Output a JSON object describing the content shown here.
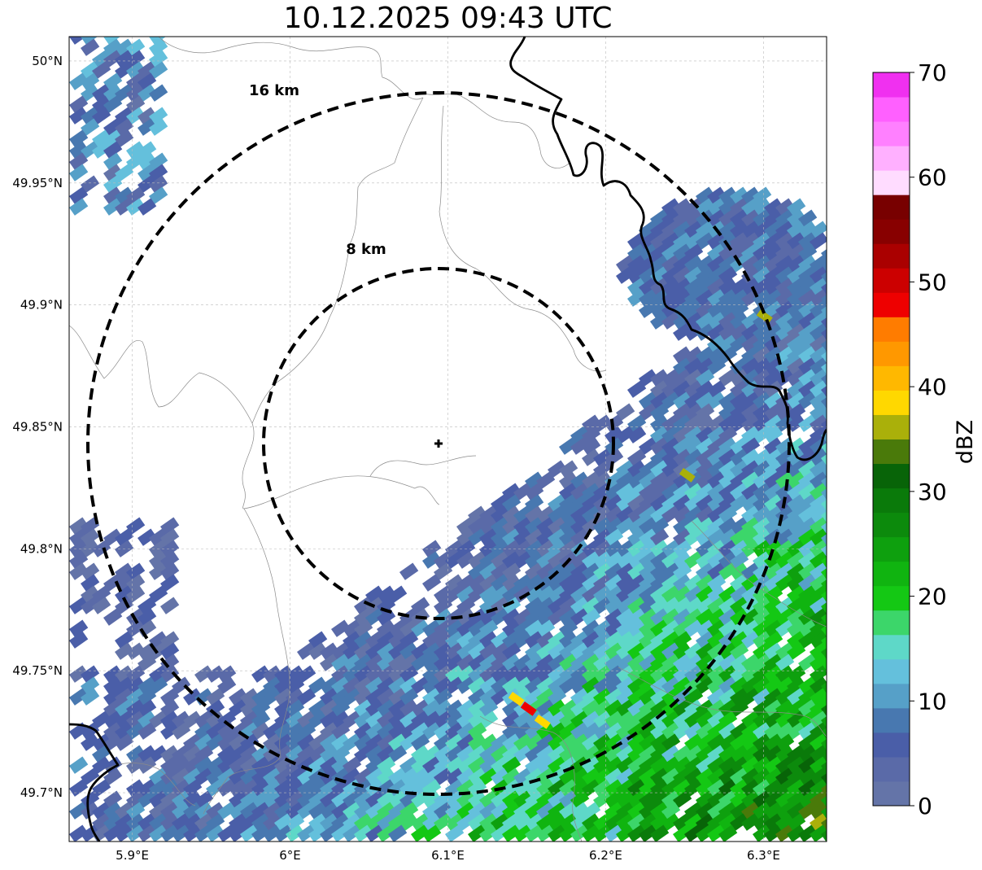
{
  "map": {
    "title": "10.12.2025 09:43 UTC",
    "lon_range": [
      5.86,
      6.34
    ],
    "lat_range": [
      49.68,
      50.01
    ],
    "lon_ticks": [
      {
        "value": 5.9,
        "label": "5.9°E"
      },
      {
        "value": 6.0,
        "label": "6°E"
      },
      {
        "value": 6.1,
        "label": "6.1°E"
      },
      {
        "value": 6.2,
        "label": "6.2°E"
      },
      {
        "value": 6.3,
        "label": "6.3°E"
      }
    ],
    "lat_ticks": [
      {
        "value": 50.0,
        "label": "50°N"
      },
      {
        "value": 49.95,
        "label": "49.95°N"
      },
      {
        "value": 49.9,
        "label": "49.9°N"
      },
      {
        "value": 49.85,
        "label": "49.85°N"
      },
      {
        "value": 49.8,
        "label": "49.8°N"
      },
      {
        "value": 49.75,
        "label": "49.75°N"
      },
      {
        "value": 49.7,
        "label": "49.7°N"
      }
    ],
    "radar_center": {
      "lon": 6.094,
      "lat": 49.843
    },
    "range_rings": [
      {
        "radius_km": 8,
        "label": "8 km"
      },
      {
        "radius_km": 16,
        "label": "16 km"
      }
    ],
    "precipitation_band": "Radar echoes 0–45 dBZ covering the south-east half of the map, strongest (20–35 dBZ) toward the south-east, with isolated 40–52 dBZ pixels."
  },
  "colorbar": {
    "label": "dBZ",
    "min": 0,
    "max": 70,
    "ticks": [
      0,
      10,
      20,
      30,
      40,
      50,
      60,
      70
    ],
    "colors": [
      "#6474a8",
      "#5a6aa8",
      "#4a5ea8",
      "#4878b0",
      "#56a0c8",
      "#64c0dc",
      "#5ed8c8",
      "#3cd66a",
      "#14c814",
      "#10b410",
      "#0ea00e",
      "#0c8a0c",
      "#0a7a0a",
      "#086408",
      "#4a7a0a",
      "#aab00a",
      "#ffd800",
      "#ffb800",
      "#ff9800",
      "#ff7c00",
      "#ee0000",
      "#cc0000",
      "#aa0000",
      "#880000",
      "#780000",
      "#ffdcff",
      "#ffb0ff",
      "#ff80ff",
      "#ff60ff",
      "#f030f0"
    ]
  },
  "colors": {
    "rings": "#000000",
    "border": "#000000",
    "grid": "#bbbbbb"
  }
}
